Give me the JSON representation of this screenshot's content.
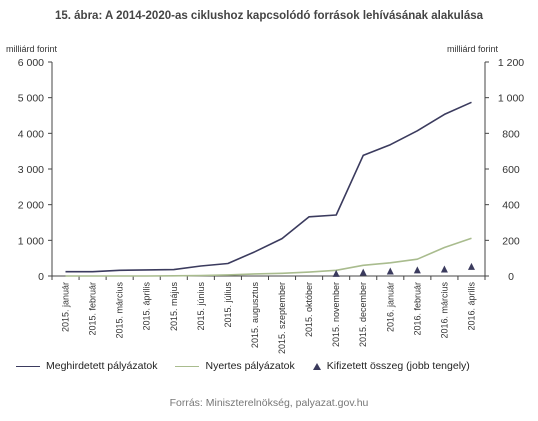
{
  "page": {
    "title": "15. ábra: A 2014-2020-as ciklushoz kapcsolódó források lehívásának alakulása",
    "source": "Forrás: Miniszterelnökség, palyazat.gov.hu"
  },
  "colors": {
    "series1": "#3b3b5e",
    "series2": "#a9bc8e",
    "series3": "#3b3b5e",
    "axis": "#444444"
  },
  "chart_data": {
    "type": "line",
    "title": "15. ábra: A 2014-2020-as ciklushoz kapcsolódó források lehívásának alakulása",
    "ylabel_left": "milliárd forint",
    "ylabel_right": "milliárd forint",
    "ylim_left": [
      0,
      6000
    ],
    "ylim_right": [
      0,
      1200
    ],
    "yticks_left": [
      "6 000",
      "5 000",
      "4 000",
      "3 000",
      "2 000",
      "1 000",
      "0"
    ],
    "yticks_right": [
      "1 200",
      "1 000",
      "800",
      "600",
      "400",
      "200",
      "0"
    ],
    "grid": false,
    "legend_position": "bottom",
    "categories": [
      "2015. január",
      "2015. február",
      "2015. március",
      "2015. április",
      "2015. május",
      "2015. június",
      "2015. július",
      "2015. augusztus",
      "2015. szeptember",
      "2015. október",
      "2015. november",
      "2015. december",
      "2016. január",
      "2016. február",
      "2016. március",
      "2016. április"
    ],
    "series": [
      {
        "name": "Meghirdetett pályázatok",
        "axis": "left",
        "style": "line",
        "values": [
          120,
          120,
          160,
          170,
          180,
          280,
          350,
          680,
          1050,
          1660,
          1710,
          3380,
          3680,
          4070,
          4530,
          4870
        ]
      },
      {
        "name": "Nyertes pályázatok",
        "axis": "left",
        "style": "line",
        "values": [
          0,
          0,
          0,
          0,
          5,
          15,
          30,
          60,
          75,
          110,
          160,
          300,
          370,
          470,
          800,
          1060
        ]
      },
      {
        "name": "Kifizetett összeg (jobb tengely)",
        "axis": "right",
        "style": "marker",
        "values": [
          0,
          0,
          0,
          0,
          0,
          0,
          0,
          0,
          0,
          0,
          1,
          8,
          14,
          20,
          25,
          40
        ]
      }
    ]
  }
}
